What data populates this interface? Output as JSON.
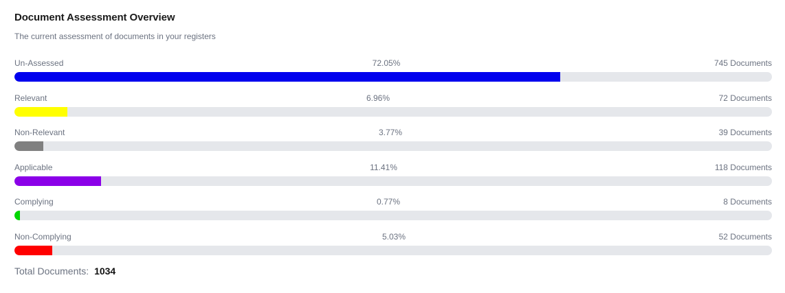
{
  "header": {
    "title": "Document Assessment Overview",
    "subtitle": "The current assessment of documents in your registers"
  },
  "rows": [
    {
      "label": "Un-Assessed",
      "percent_text": "72.05%",
      "percent": 72.05,
      "count_text": "745 Documents",
      "color": "#0000ee"
    },
    {
      "label": "Relevant",
      "percent_text": "6.96%",
      "percent": 6.96,
      "count_text": "72 Documents",
      "color": "#ffff00"
    },
    {
      "label": "Non-Relevant",
      "percent_text": "3.77%",
      "percent": 3.77,
      "count_text": "39 Documents",
      "color": "#808080"
    },
    {
      "label": "Applicable",
      "percent_text": "11.41%",
      "percent": 11.41,
      "count_text": "118 Documents",
      "color": "#8b00e8"
    },
    {
      "label": "Complying",
      "percent_text": "0.77%",
      "percent": 0.77,
      "count_text": "8 Documents",
      "color": "#00d600"
    },
    {
      "label": "Non-Complying",
      "percent_text": "5.03%",
      "percent": 5.03,
      "count_text": "52 Documents",
      "color": "#ff0000"
    }
  ],
  "footer": {
    "total_label": "Total Documents:",
    "total_value": "1034"
  }
}
